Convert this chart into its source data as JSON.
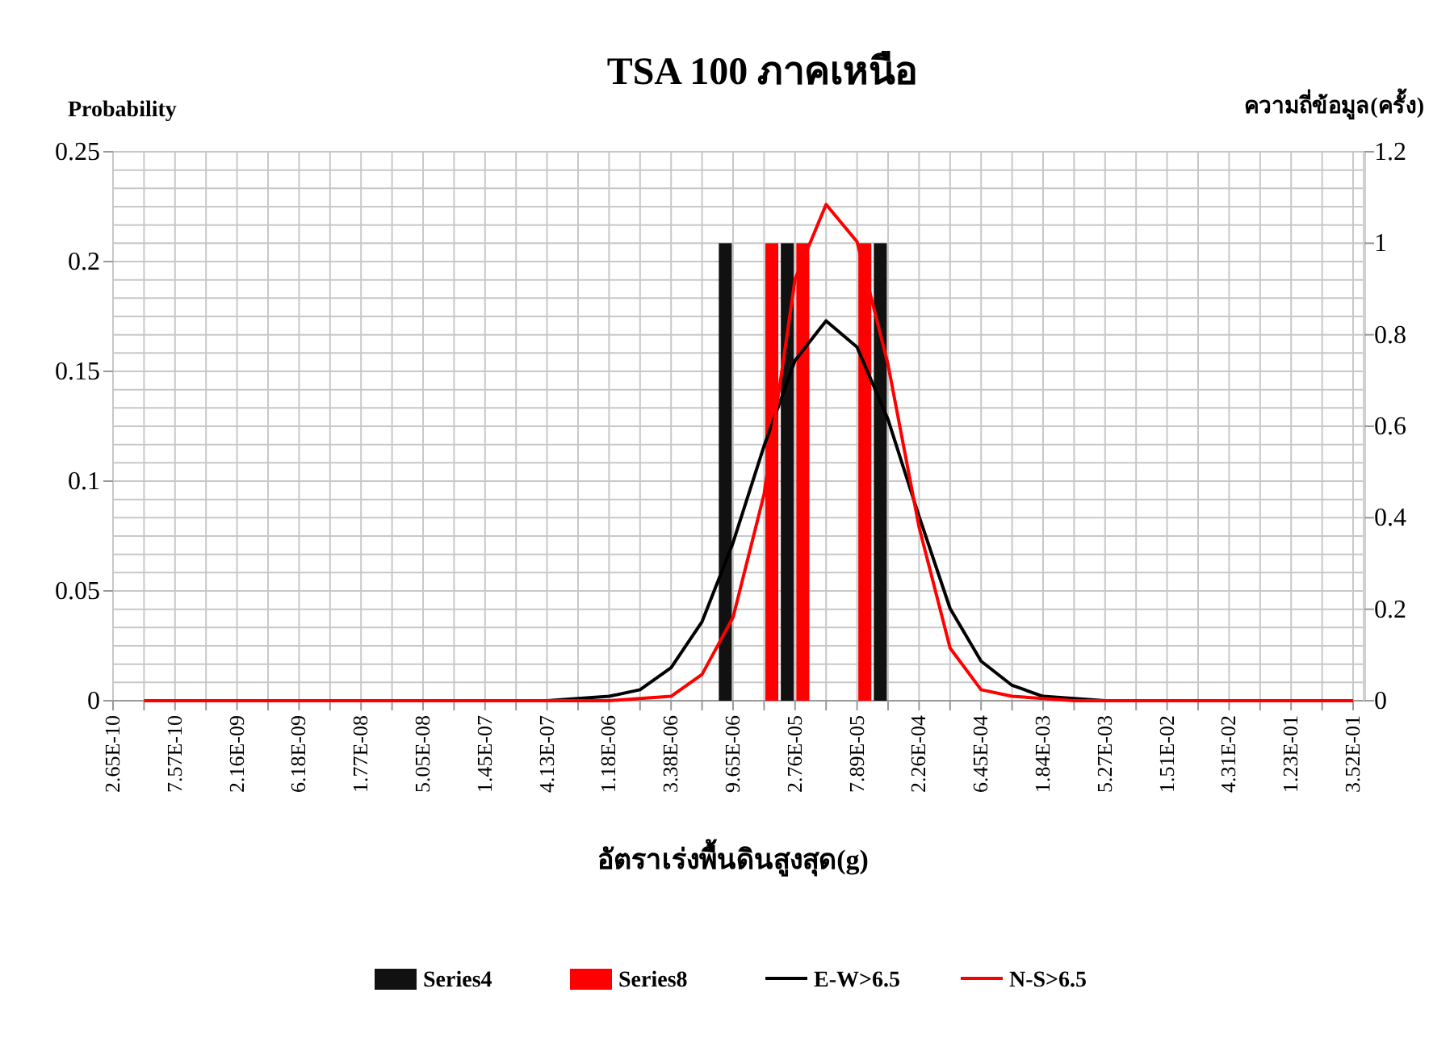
{
  "chart_data": {
    "type": "bar",
    "title": "TSA 100 ภาคเหนือ",
    "ylabel": "Probability",
    "y2label": "ความถี่ข้อมูล(ครั้ง)",
    "xlabel": "อัตราเร่งพื้นดินสูงสุด(g)",
    "categories": [
      "2.65E-10",
      null,
      "7.57E-10",
      null,
      "2.16E-09",
      null,
      "6.18E-09",
      null,
      "1.77E-08",
      null,
      "5.05E-08",
      null,
      "1.45E-07",
      null,
      "4.13E-07",
      null,
      "1.18E-06",
      null,
      "3.38E-06",
      null,
      "9.65E-06",
      null,
      "2.76E-05",
      null,
      "7.89E-05",
      null,
      "2.26E-04",
      null,
      "6.45E-04",
      null,
      "1.84E-03",
      null,
      "5.27E-03",
      null,
      "1.51E-02",
      null,
      "4.31E-02",
      null,
      "1.23E-01",
      null,
      "3.52E-01"
    ],
    "series": [
      {
        "name": "Series4",
        "axis": "y2",
        "color": "#111111",
        "values": [
          null,
          null,
          null,
          null,
          null,
          null,
          null,
          null,
          null,
          null,
          null,
          null,
          null,
          null,
          null,
          null,
          null,
          null,
          null,
          null,
          1,
          null,
          1,
          null,
          null,
          1,
          null,
          null,
          null,
          null,
          null,
          null,
          null,
          null,
          null,
          null,
          null,
          null,
          null,
          null,
          null
        ]
      },
      {
        "name": "Series8",
        "axis": "y2",
        "color": "#ff0000",
        "values": [
          null,
          null,
          null,
          null,
          null,
          null,
          null,
          null,
          null,
          null,
          null,
          null,
          null,
          null,
          null,
          null,
          null,
          null,
          null,
          null,
          null,
          1,
          1,
          null,
          1,
          null,
          null,
          null,
          null,
          null,
          null,
          null,
          null,
          null,
          null,
          null,
          null,
          null,
          null,
          null,
          null
        ]
      },
      {
        "name": "E-W>6.5",
        "type": "line",
        "color": "#000000",
        "values": [
          null,
          null,
          null,
          null,
          null,
          null,
          null,
          null,
          null,
          null,
          null,
          null,
          null,
          null,
          0,
          0.001,
          0.002,
          0.005,
          0.015,
          0.036,
          0.072,
          0.116,
          0.155,
          0.173,
          0.161,
          0.128,
          0.084,
          0.042,
          0.018,
          0.007,
          0.002,
          0.001,
          0,
          null,
          null,
          null,
          null,
          null,
          null,
          null,
          null
        ]
      },
      {
        "name": "N-S>6.5",
        "type": "line",
        "color": "#ff0000",
        "values": [
          null,
          0,
          0,
          0,
          0,
          0,
          0,
          0,
          0,
          0,
          0,
          0,
          0,
          0,
          0,
          0,
          0,
          0.001,
          0.002,
          0.012,
          0.038,
          0.094,
          0.192,
          0.226,
          0.209,
          0.153,
          0.079,
          0.024,
          0.005,
          0.002,
          0.001,
          0,
          0,
          0,
          0,
          0,
          0,
          0,
          0,
          0,
          0
        ]
      }
    ],
    "ylim": [
      0,
      0.25
    ],
    "yticks": [
      0,
      0.05,
      0.1,
      0.15,
      0.2,
      0.25
    ],
    "y2lim": [
      0,
      1.2
    ],
    "y2ticks": [
      0,
      0.2,
      0.4,
      0.6,
      0.8,
      1,
      1.2
    ],
    "grid": true,
    "legend": "bottom",
    "marker": "none"
  }
}
